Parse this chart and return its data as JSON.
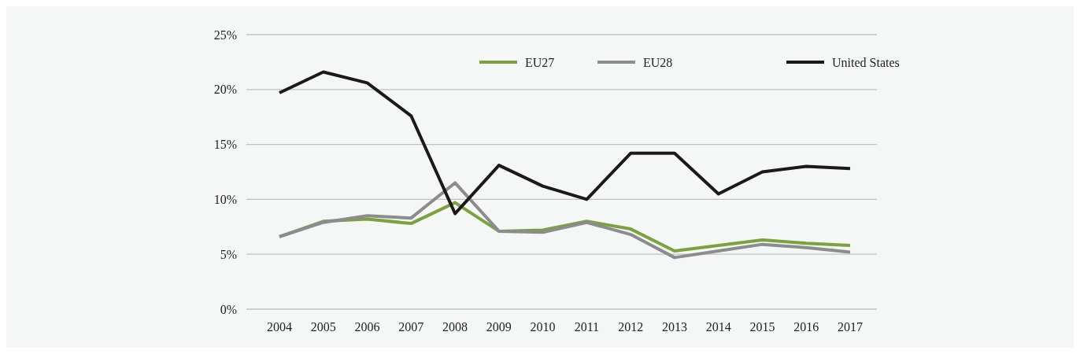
{
  "chart_data": {
    "type": "line",
    "categories": [
      "2004",
      "2005",
      "2006",
      "2007",
      "2008",
      "2009",
      "2010",
      "2011",
      "2012",
      "2013",
      "2014",
      "2015",
      "2016",
      "2017"
    ],
    "series": [
      {
        "name": "EU27",
        "color": "#7ba23f",
        "values": [
          6.6,
          8.0,
          8.2,
          7.8,
          9.7,
          7.1,
          7.2,
          8.0,
          7.3,
          5.3,
          5.8,
          6.3,
          6.0,
          5.8
        ]
      },
      {
        "name": "EU28",
        "color": "#8c8c8f",
        "values": [
          6.6,
          7.9,
          8.5,
          8.3,
          11.5,
          7.1,
          7.0,
          7.9,
          6.8,
          4.7,
          5.3,
          5.9,
          5.6,
          5.2
        ]
      },
      {
        "name": "United States",
        "color": "#1a1a1a",
        "values": [
          19.7,
          21.6,
          20.6,
          17.6,
          8.7,
          13.1,
          11.2,
          10.0,
          14.2,
          14.2,
          10.5,
          12.5,
          13.0,
          12.8
        ]
      }
    ],
    "ylim": [
      0,
      25
    ],
    "yticks": [
      {
        "value": 0,
        "label": "0%"
      },
      {
        "value": 5,
        "label": "5%"
      },
      {
        "value": 10,
        "label": "10%"
      },
      {
        "value": 15,
        "label": "15%"
      },
      {
        "value": 20,
        "label": "20%"
      },
      {
        "value": 25,
        "label": "25%"
      }
    ],
    "grid": "y",
    "legend": "top right",
    "line_style": "solid",
    "marker": "none"
  }
}
